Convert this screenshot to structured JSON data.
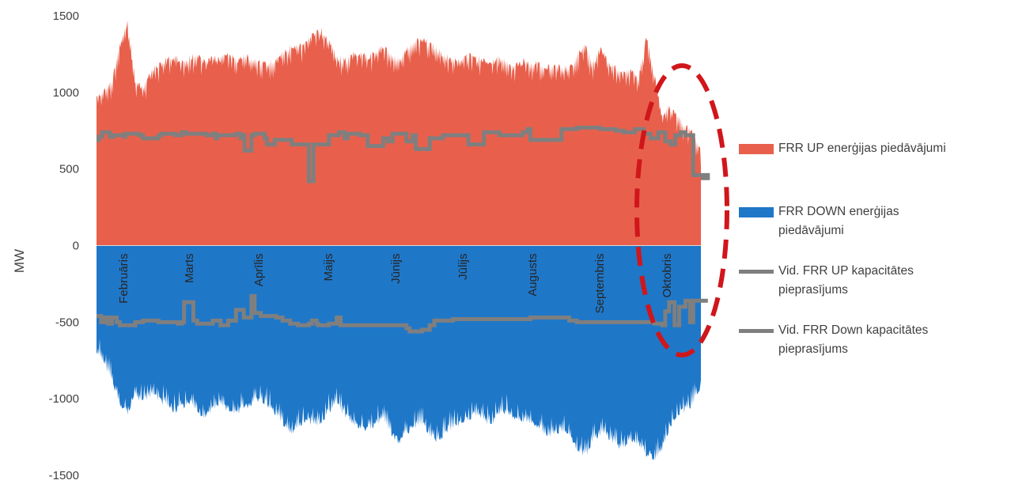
{
  "chart_data": {
    "type": "area",
    "ylabel": "MW",
    "ylim": [
      -1500,
      1500
    ],
    "y_ticks": [
      1500,
      1000,
      500,
      0,
      -500,
      -1000,
      -1500
    ],
    "grid": false,
    "legend_position": "right",
    "months": [
      "Februāris",
      "Marts",
      "Aprīlis",
      "Maijs",
      "Jūnijs",
      "Jūlijs",
      "Augusts",
      "Septembris",
      "Oktobris"
    ],
    "series": [
      {
        "name": "FRR UP enerģijas piedāvājumi",
        "kind": "area",
        "color": "#E8604C",
        "values": [
          1000,
          1030,
          1100,
          1330,
          1480,
          1100,
          1050,
          1160,
          1200,
          1240,
          1260,
          1220,
          1250,
          1270,
          1210,
          1250,
          1240,
          1280,
          1230,
          1260,
          1250,
          1220,
          1200,
          1240,
          1280,
          1320,
          1310,
          1350,
          1400,
          1430,
          1360,
          1260,
          1230,
          1270,
          1280,
          1250,
          1290,
          1320,
          1280,
          1230,
          1300,
          1350,
          1380,
          1340,
          1310,
          1260,
          1240,
          1220,
          1270,
          1250,
          1230,
          1210,
          1260,
          1220,
          1190,
          1230,
          1200,
          1220,
          1180,
          1200,
          1190,
          1170,
          1260,
          1330,
          1200,
          1310,
          1220,
          1180,
          1150,
          1170,
          1120,
          1390,
          1150,
          880,
          930,
          860,
          800,
          760,
          650
        ]
      },
      {
        "name": "FRR DOWN enerģijas piedāvājumi",
        "kind": "area",
        "color": "#1F77C8",
        "values": [
          -700,
          -800,
          -900,
          -1050,
          -1120,
          -1000,
          -1040,
          -1000,
          -1020,
          -1060,
          -1100,
          -1080,
          -1040,
          -1100,
          -1140,
          -1080,
          -1060,
          -1100,
          -1120,
          -1080,
          -1050,
          -1020,
          -1060,
          -1120,
          -1180,
          -1250,
          -1200,
          -1150,
          -1200,
          -1180,
          -1100,
          -1060,
          -1120,
          -1180,
          -1200,
          -1220,
          -1180,
          -1150,
          -1250,
          -1300,
          -1240,
          -1200,
          -1180,
          -1250,
          -1300,
          -1240,
          -1200,
          -1180,
          -1150,
          -1120,
          -1160,
          -1180,
          -1120,
          -1100,
          -1150,
          -1160,
          -1180,
          -1200,
          -1250,
          -1250,
          -1230,
          -1260,
          -1350,
          -1400,
          -1300,
          -1250,
          -1260,
          -1320,
          -1350,
          -1280,
          -1320,
          -1380,
          -1410,
          -1360,
          -1200,
          -1130,
          -1090,
          -1050,
          -950
        ]
      },
      {
        "name": "Vid. FRR UP kapacitātes pieprasījums",
        "kind": "step-line",
        "color": "#7F7F7F",
        "x": [
          0,
          0.3,
          0.7,
          1.7,
          2.2,
          3.6,
          3.7,
          5.5,
          6.0,
          8.0,
          8.4,
          10.2,
          11.0,
          11.6,
          14.2,
          15.0,
          15.4,
          15.6,
          18.0,
          18.6,
          18.9,
          19.1,
          20.0,
          20.4,
          21.7,
          22.0,
          23.0,
          25.2,
          26.5,
          27.4,
          28.0,
          29.5,
          30.0,
          31.3,
          32.0,
          32.4,
          34.0,
          35.0,
          37.0,
          37.6,
          38.2,
          40.0,
          40.8,
          41.2,
          43.0,
          44.7,
          48.0,
          50.0,
          52.0,
          55.0,
          55.6,
          56.0,
          60.0,
          62.0,
          65.0,
          67.0,
          68.0,
          69.5,
          70.0,
          70.6,
          71.5,
          72.5,
          73.4,
          74.1,
          74.7,
          75.4,
          76.0,
          77.0,
          78.9
        ],
        "values": [
          690,
          710,
          740,
          710,
          720,
          710,
          730,
          720,
          700,
          720,
          730,
          720,
          740,
          730,
          720,
          730,
          700,
          720,
          730,
          700,
          720,
          620,
          720,
          730,
          700,
          660,
          690,
          660,
          660,
          420,
          660,
          660,
          720,
          740,
          700,
          730,
          720,
          650,
          700,
          680,
          730,
          680,
          720,
          630,
          700,
          720,
          660,
          740,
          720,
          740,
          760,
          690,
          760,
          770,
          760,
          750,
          740,
          760,
          760,
          730,
          700,
          740,
          680,
          660,
          720,
          740,
          720,
          460,
          440
        ]
      },
      {
        "name": "Vid. FRR Down kapacitātes pieprasījums",
        "kind": "step-line",
        "color": "#7F7F7F",
        "x": [
          0,
          0.6,
          1.0,
          1.5,
          2.0,
          2.6,
          3.0,
          4.0,
          5.0,
          6.0,
          8.0,
          10.5,
          11.0,
          11.3,
          12.5,
          13.0,
          15.0,
          16.0,
          17.0,
          18.0,
          19.0,
          20.0,
          20.4,
          21.2,
          22.5,
          23.2,
          24.0,
          25.0,
          26.0,
          27.0,
          27.4,
          27.8,
          28.4,
          28.6,
          30.0,
          31.0,
          31.5,
          32.0,
          32.2,
          33.0,
          34.0,
          36.0,
          38.0,
          40.0,
          40.4,
          42.0,
          43.0,
          43.6,
          44.0,
          46.0,
          47.0,
          48.0,
          50.0,
          52.0,
          54.0,
          56.0,
          58.0,
          60.0,
          61.0,
          62.0,
          64.0,
          66.0,
          68.0,
          70.0,
          71.0,
          72.0,
          73.0,
          73.4,
          73.9,
          74.6,
          75.2,
          76.0,
          76.6,
          77.0,
          78.9
        ],
        "values": [
          -460,
          -500,
          -470,
          -510,
          -470,
          -500,
          -520,
          -520,
          -500,
          -490,
          -500,
          -510,
          -500,
          -370,
          -490,
          -510,
          -490,
          -520,
          -490,
          -420,
          -470,
          -330,
          -440,
          -460,
          -460,
          -470,
          -490,
          -510,
          -520,
          -520,
          -510,
          -490,
          -510,
          -520,
          -510,
          -470,
          -520,
          -520,
          -520,
          -520,
          -520,
          -520,
          -520,
          -540,
          -560,
          -550,
          -520,
          -490,
          -490,
          -480,
          -480,
          -480,
          -480,
          -480,
          -480,
          -470,
          -470,
          -470,
          -490,
          -500,
          -500,
          -500,
          -500,
          -500,
          -500,
          -510,
          -520,
          -430,
          -370,
          -520,
          -400,
          -360,
          -500,
          -360,
          -360
        ]
      }
    ],
    "annotation": {
      "type": "dashed-ellipse",
      "color": "#D0161B",
      "around_month": "Oktobris"
    }
  }
}
